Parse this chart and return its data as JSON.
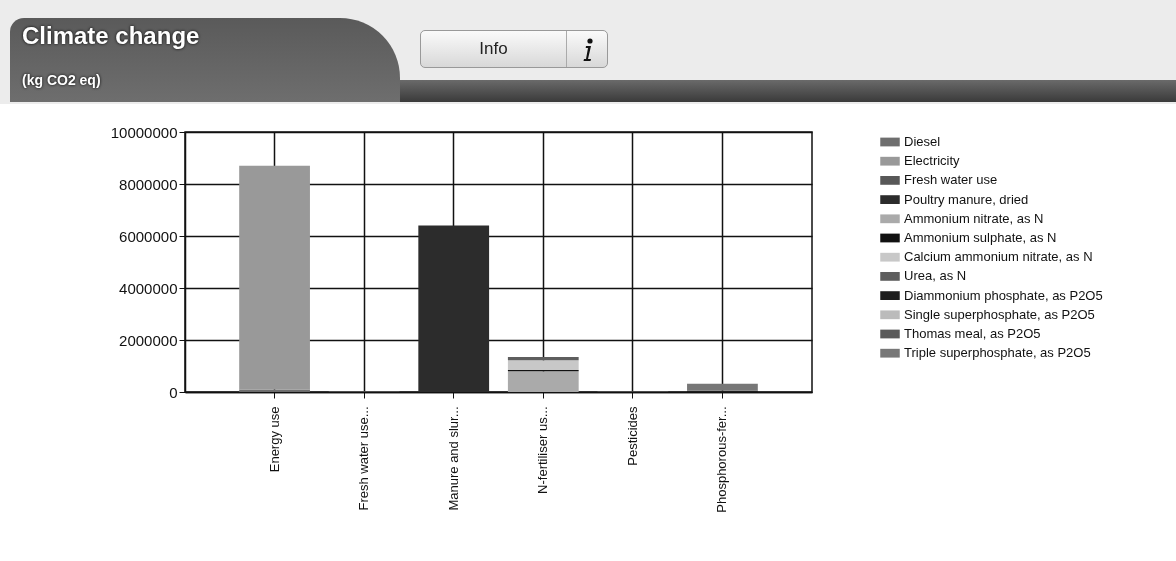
{
  "chart_data": {
    "type": "bar",
    "title": "Climate change",
    "subtitle": "(kg CO2 eq)",
    "annotations": [
      "Info"
    ],
    "categories": [
      "Energy use",
      "Fresh water use...",
      "Manure and slur...",
      "N-fertiliser us...",
      "Pesticides",
      "Phosphorous-fer..."
    ],
    "stacked": true,
    "ylim": [
      0,
      10000000
    ],
    "yticks": [
      0,
      2000000,
      4000000,
      6000000,
      8000000,
      10000000
    ],
    "grid": true,
    "legend": "right",
    "series": [
      {
        "name": "Diesel",
        "color": "#6e6e6e",
        "values": [
          100000,
          null,
          null,
          null,
          null,
          null
        ]
      },
      {
        "name": "Electricity",
        "color": "#999999",
        "values": [
          8600000,
          null,
          null,
          null,
          null,
          null
        ]
      },
      {
        "name": "Fresh water use",
        "color": "#585858",
        "values": [
          null,
          30000,
          null,
          null,
          null,
          null
        ]
      },
      {
        "name": "Poultry manure, dried",
        "color": "#2c2c2c",
        "values": [
          null,
          null,
          6400000,
          null,
          null,
          null
        ]
      },
      {
        "name": "Ammonium nitrate, as N",
        "color": "#aaaaaa",
        "values": [
          null,
          null,
          null,
          800000,
          null,
          null
        ]
      },
      {
        "name": "Ammonium sulphate, as N",
        "color": "#111111",
        "values": [
          null,
          null,
          null,
          50000,
          null,
          null
        ]
      },
      {
        "name": "Calcium ammonium nitrate, as N",
        "color": "#c8c8c8",
        "values": [
          null,
          null,
          null,
          370000,
          null,
          null
        ]
      },
      {
        "name": "Urea, as N",
        "color": "#5e5e5e",
        "values": [
          null,
          null,
          null,
          130000,
          null,
          null
        ]
      },
      {
        "color": "#666666",
        "values": [
          null,
          null,
          null,
          null,
          20000,
          null
        ]
      },
      {
        "name": "Diammonium phosphate, as P2O5",
        "color": "#1e1e1e",
        "values": [
          null,
          null,
          null,
          null,
          null,
          50000
        ]
      },
      {
        "name": "Single superphosphate, as P2O5",
        "color": "#bbbbbb",
        "values": [
          null,
          null,
          null,
          null,
          null,
          null
        ]
      },
      {
        "name": "Thomas meal, as P2O5",
        "color": "#5a5a5a",
        "values": [
          null,
          null,
          null,
          null,
          null,
          null
        ]
      },
      {
        "name": "Triple superphosphate, as P2O5",
        "color": "#777777",
        "values": [
          null,
          null,
          null,
          null,
          null,
          270000
        ]
      }
    ]
  }
}
